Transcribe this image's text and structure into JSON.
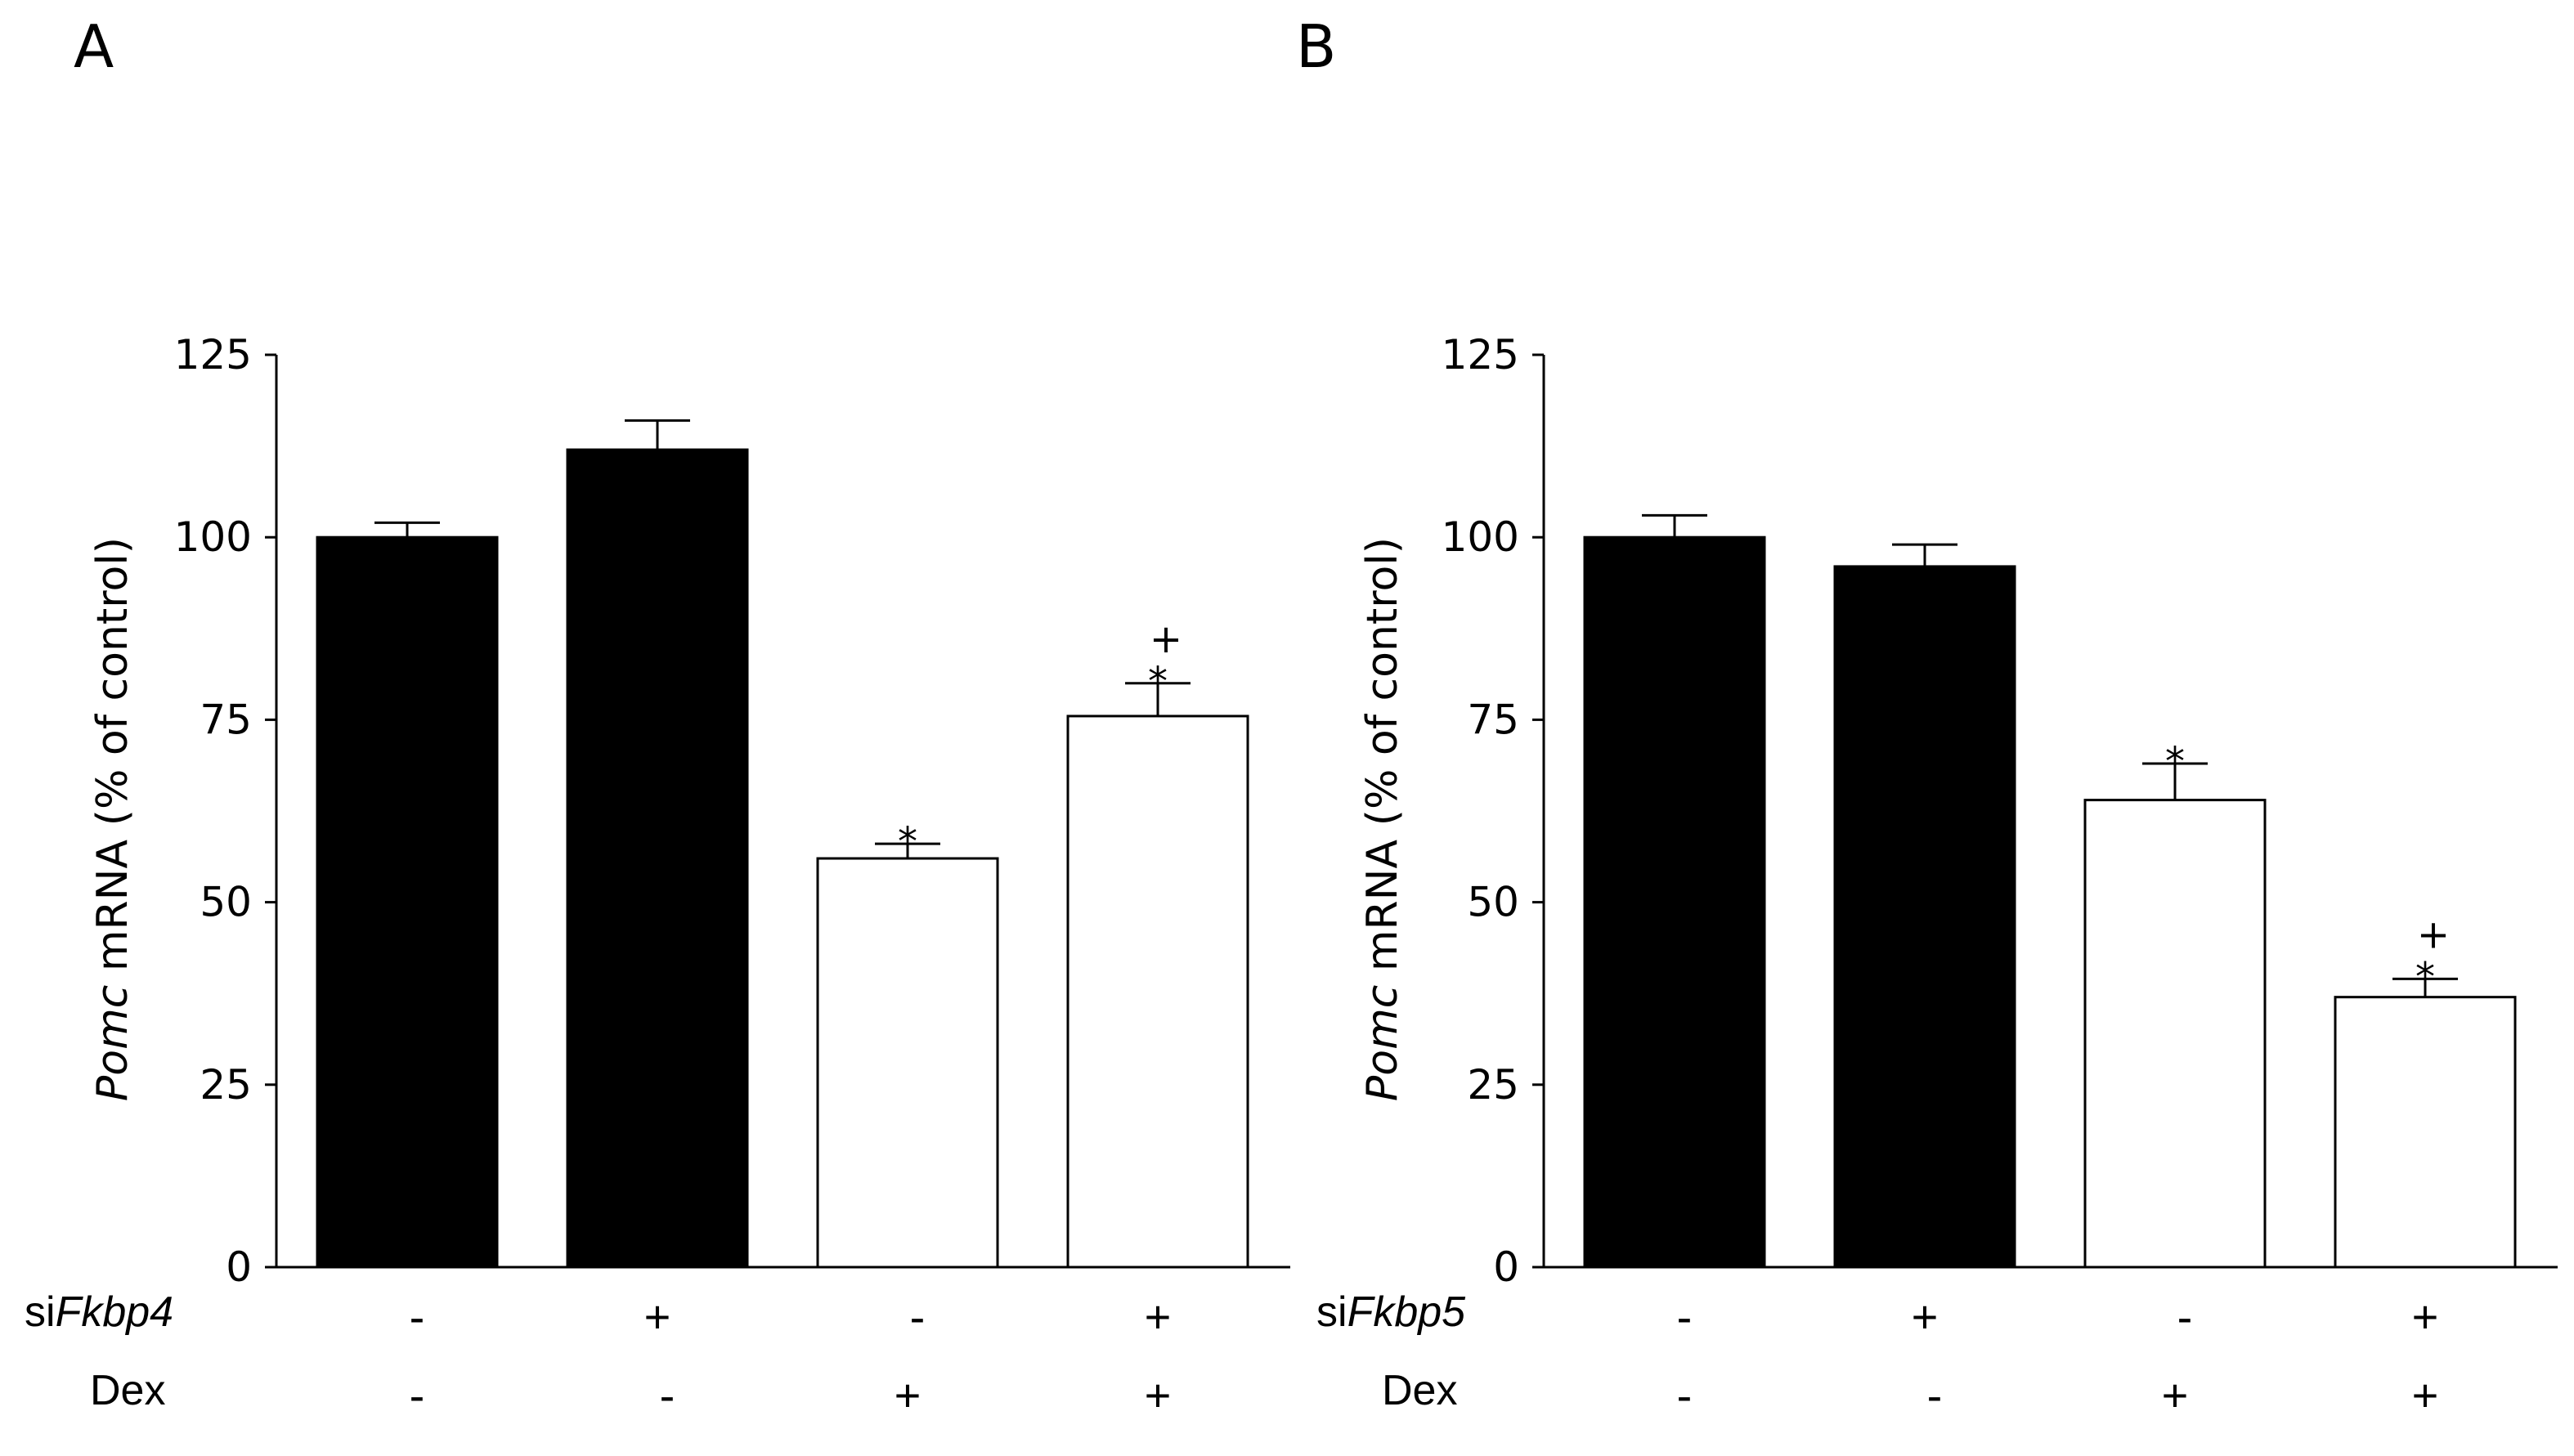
{
  "chart_data": [
    {
      "panel": "A",
      "type": "bar",
      "ylabel_italic": "Pomc",
      "ylabel_rest": " mRNA (% of control)",
      "ylim": [
        0,
        125
      ],
      "yticks": [
        0,
        25,
        50,
        75,
        100,
        125
      ],
      "values": [
        100,
        112,
        56,
        75.5
      ],
      "errors": [
        2,
        4,
        2,
        4.5
      ],
      "fills": [
        "#000000",
        "#000000",
        "#ffffff",
        "#ffffff"
      ],
      "annotations": [
        [],
        [],
        [
          "*"
        ],
        [
          "*",
          "+"
        ]
      ],
      "rows": [
        {
          "label_prefix": "si",
          "label_italic": "Fkbp4",
          "values": [
            "-",
            "+",
            "-",
            "+"
          ]
        },
        {
          "label_prefix": "Dex",
          "label_italic": "",
          "values": [
            "-",
            "-",
            "+",
            "+"
          ]
        }
      ]
    },
    {
      "panel": "B",
      "type": "bar",
      "ylabel_italic": "Pomc",
      "ylabel_rest": " mRNA (% of control)",
      "ylim": [
        0,
        125
      ],
      "yticks": [
        0,
        25,
        50,
        75,
        100,
        125
      ],
      "values": [
        100,
        96,
        64,
        37
      ],
      "errors": [
        3,
        3,
        5,
        2.5
      ],
      "fills": [
        "#000000",
        "#000000",
        "#ffffff",
        "#ffffff"
      ],
      "annotations": [
        [],
        [],
        [
          "*"
        ],
        [
          "*",
          "+"
        ]
      ],
      "rows": [
        {
          "label_prefix": "si",
          "label_italic": "Fkbp5",
          "values": [
            "-",
            "+",
            "-",
            "+"
          ]
        },
        {
          "label_prefix": "Dex",
          "label_italic": "",
          "values": [
            "-",
            "-",
            "+",
            "+"
          ]
        }
      ]
    }
  ]
}
